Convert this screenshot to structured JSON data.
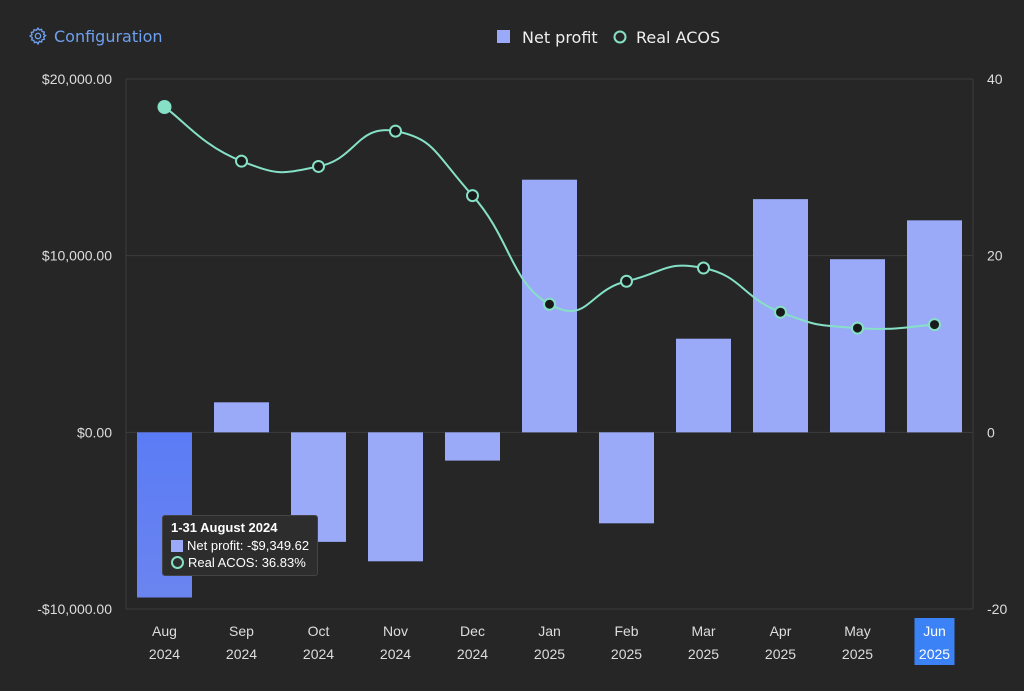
{
  "header": {
    "config_label": "Configuration",
    "config_icon": "gear-icon"
  },
  "tooltip": {
    "title": "1-31 August 2024",
    "net_profit": "Net profit: -$9,349.62",
    "acos": "Real ACOS: 36.83%"
  },
  "colors": {
    "bar": "#9aaaf8",
    "bar_hover": "#5a7cf5",
    "line": "#86e0c6",
    "config": "#6ea0f0",
    "highlight_label_bg": "#3b82f6"
  },
  "chart_data": {
    "type": "bar+line",
    "categories": [
      [
        "Aug",
        "2024"
      ],
      [
        "Sep",
        "2024"
      ],
      [
        "Oct",
        "2024"
      ],
      [
        "Nov",
        "2024"
      ],
      [
        "Dec",
        "2024"
      ],
      [
        "Jan",
        "2025"
      ],
      [
        "Feb",
        "2025"
      ],
      [
        "Mar",
        "2025"
      ],
      [
        "Apr",
        "2025"
      ],
      [
        "May",
        "2025"
      ],
      [
        "Jun",
        "2025"
      ]
    ],
    "series": [
      {
        "name": "Net profit",
        "type": "bar",
        "axis": "left",
        "values": [
          -9349.62,
          1700,
          -6200,
          -7300,
          -1600,
          14300,
          -5150,
          5300,
          13200,
          9800,
          12000
        ]
      },
      {
        "name": "Real ACOS",
        "type": "line",
        "axis": "right",
        "values": [
          36.83,
          30.7,
          30.1,
          34.1,
          26.8,
          14.5,
          17.1,
          18.6,
          13.6,
          11.8,
          12.2
        ]
      }
    ],
    "left_axis": {
      "range": [
        -10000,
        20000
      ],
      "ticks": [
        "$20,000.00",
        "$10,000.00",
        "$0.00",
        "-$10,000.00"
      ],
      "tick_values": [
        20000,
        10000,
        0,
        -10000
      ]
    },
    "right_axis": {
      "range": [
        -20,
        40
      ],
      "ticks": [
        "40",
        "20",
        "0",
        "-20"
      ],
      "tick_values": [
        40,
        20,
        0,
        -20
      ]
    },
    "legend": {
      "placement": "top-center",
      "entries": [
        "Net profit",
        "Real ACOS"
      ]
    },
    "grid": true,
    "hovered_index": 0,
    "highlighted_label_index": 10
  }
}
